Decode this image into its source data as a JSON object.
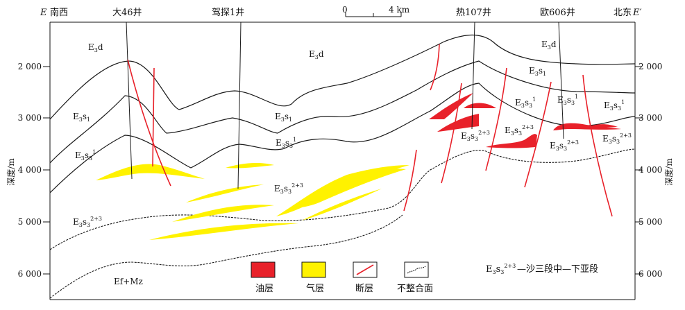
{
  "header": {
    "left_letter": "E",
    "left_dir": "南西",
    "right_dir": "北东",
    "right_letter": "E′"
  },
  "scale_bar": {
    "start": "0",
    "end": "4 km"
  },
  "wells": [
    "大46井",
    "驾探1井",
    "热107井",
    "欧606井"
  ],
  "axis": {
    "label": "深度/m",
    "ticks": [
      "2 000",
      "3 000",
      "4 000",
      "5 000",
      "6 000"
    ]
  },
  "formation_labels": {
    "ed": "E3d",
    "es1": "E3s1",
    "es3_1": "E3s31",
    "es3_23": "E3s32+3",
    "basement": "Ef+Mz"
  },
  "legend": {
    "oil": "油层",
    "gas": "气层",
    "fault": "断层",
    "unconformity": "不整合面",
    "note_prefix": "E3s32+3",
    "note_text": "—沙三段中—下亚段"
  },
  "colors": {
    "oil": "#e8212a",
    "gas": "#fff200",
    "fault": "#e8212a",
    "line": "#1a1a1a"
  }
}
